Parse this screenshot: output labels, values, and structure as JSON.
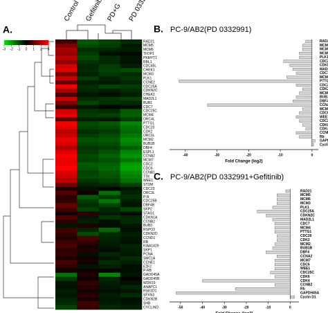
{
  "chart_data": [
    {
      "type": "heatmap",
      "label": "A.",
      "columns": [
        "Control",
        "Gefitinib",
        "PD+G",
        "PD  0332991"
      ],
      "rows": [
        "RAD21",
        "MCM5",
        "MCM6",
        "TFDP1",
        "PKMYT1",
        "RBL1",
        "CDC45L",
        "CHEK1",
        "MCM3",
        "PLK1",
        "CCNE2",
        "CDC25A",
        "CDKN2C",
        "CHEK2",
        "MAD2L1",
        "BUB1",
        "CDC7",
        "CDC25C",
        "MCM4",
        "ORC4L",
        "PTTG1",
        "CDC20",
        "CDK2",
        "ORC1L",
        "MCM2",
        "BUB1B",
        "DBF4",
        "ESPL1",
        "CCNA2",
        "MCM7",
        "CDC2",
        "CDC6",
        "CCNB1",
        "TTK",
        "WEE1",
        "STDM",
        "CDC23",
        "ORC3L",
        "P-R",
        "CDC25B",
        "DBF4B",
        "SKP2",
        "STAG1",
        "CDKN1A",
        "CCNB2",
        "BUB3",
        "RSPO3",
        "CDKN2D",
        "CCND1",
        "RB",
        "KIAA1429",
        "SKP1",
        "PCNA",
        "SMC1A",
        "CCNE1",
        "E2F2",
        "P-RB",
        "GADD45A",
        "GADD45B",
        "WDR19",
        "ANAPC1",
        "RSE1D1",
        "SFXN3",
        "CDKN2B",
        "SHB",
        "CYCLIND"
      ],
      "values": [
        [
          0.8,
          -1.2,
          -0.9,
          -0.6
        ],
        [
          1.5,
          -1,
          -0.8,
          -0.3
        ],
        [
          2,
          -0.6,
          -0.5,
          -0.4
        ],
        [
          1.8,
          -0.8,
          -0.2,
          -0.1
        ],
        [
          2.2,
          -1,
          -0.6,
          -0.3
        ],
        [
          1.6,
          -0.7,
          -0.5,
          -0.2
        ],
        [
          2.5,
          -0.5,
          -0.8,
          -0.4
        ],
        [
          2.6,
          -0.6,
          -0.9,
          -1
        ],
        [
          1.4,
          -0.4,
          -0.7,
          -0.6
        ],
        [
          2.4,
          -0.8,
          -0.5,
          -0.7
        ],
        [
          1.2,
          -0.4,
          -0.3,
          -0.5
        ],
        [
          2.8,
          -0.6,
          -0.9,
          -0.8
        ],
        [
          2,
          -0.5,
          -0.4,
          -0.6
        ],
        [
          0.8,
          -0.3,
          -0.2,
          -0.4
        ],
        [
          2.3,
          -0.6,
          -0.7,
          -0.9
        ],
        [
          1.5,
          -0.9,
          -0.6,
          -0.5
        ],
        [
          0.6,
          -0.3,
          -0.1,
          -0.2
        ],
        [
          2.5,
          -0.7,
          -0.6,
          -1.2
        ],
        [
          2.7,
          -0.8,
          -0.9,
          -1.3
        ],
        [
          1.1,
          -0.4,
          -0.3,
          -0.8
        ],
        [
          2.9,
          -1,
          -1.2,
          -1.8
        ],
        [
          2.6,
          -0.9,
          -1,
          -1.5
        ],
        [
          2.2,
          -0.6,
          -0.8,
          -1.4
        ],
        [
          2.4,
          -0.8,
          -1,
          -1.6
        ],
        [
          2.8,
          -1.1,
          -1.2,
          -1.9
        ],
        [
          2.5,
          -0.9,
          -1,
          -1.7
        ],
        [
          2.1,
          -0.7,
          -0.8,
          -1.2
        ],
        [
          2.6,
          -0.8,
          -1.1,
          -1.8
        ],
        [
          2.9,
          -1,
          -1.3,
          -2
        ],
        [
          2.7,
          -0.9,
          -1.1,
          -1.6
        ],
        [
          2.8,
          -1.2,
          -1.3,
          -2.1
        ],
        [
          3,
          -1.1,
          -1.4,
          -2.2
        ],
        [
          2.6,
          -0.9,
          -1.2,
          -1.9
        ],
        [
          2.4,
          -1,
          -1.1,
          -1.7
        ],
        [
          2.2,
          -0.7,
          -0.9,
          -1.5
        ],
        [
          1.4,
          -0.5,
          -0.6,
          -0.9
        ],
        [
          0.4,
          -0.2,
          -0.1,
          -0.3
        ],
        [
          1,
          0.2,
          -1.5,
          -0.5
        ],
        [
          0.5,
          -1.2,
          -0.8,
          -0.6
        ],
        [
          0.6,
          -0.8,
          -1.6,
          -0.4
        ],
        [
          1.2,
          -0.6,
          -0.9,
          -0.3
        ],
        [
          0.8,
          -0.9,
          -0.5,
          -1
        ],
        [
          0.3,
          0.5,
          -0.4,
          -0.2
        ],
        [
          0.9,
          -0.3,
          -0.7,
          -0.5
        ],
        [
          0.5,
          -0.4,
          -0.2,
          -0.6
        ],
        [
          -0.3,
          0.4,
          -0.2,
          -0.3
        ],
        [
          0.8,
          -0.5,
          -1.4,
          -0.2
        ],
        [
          0.6,
          -1,
          -0.6,
          -0.4
        ],
        [
          0.4,
          0.9,
          -0.5,
          -0.3
        ],
        [
          0.7,
          0.6,
          -0.4,
          -0.2
        ],
        [
          0.9,
          0.3,
          -0.3,
          -0.5
        ],
        [
          0.5,
          0.4,
          -0.2,
          -0.4
        ],
        [
          0.6,
          -0.2,
          -0.5,
          -0.3
        ],
        [
          0.4,
          0.2,
          -0.3,
          -0.6
        ],
        [
          0.8,
          0.3,
          -0.6,
          -0.4
        ],
        [
          0.5,
          -0.3,
          -0.4,
          -0.2
        ],
        [
          0.3,
          0.2,
          -0.1,
          -0.2
        ],
        [
          -1.5,
          0.4,
          -1.8,
          -0.3
        ],
        [
          -0.8,
          0.2,
          -0.5,
          0.1
        ],
        [
          -0.3,
          0.6,
          -0.4,
          -0.2
        ],
        [
          -0.2,
          0.4,
          -0.3,
          -0.5
        ],
        [
          -0.4,
          0.3,
          -0.2,
          -0.3
        ],
        [
          -0.3,
          0.5,
          -0.4,
          -0.6
        ],
        [
          -0.5,
          0.3,
          -0.3,
          -0.2
        ],
        [
          -0.6,
          0.8,
          -0.4,
          -0.3
        ],
        [
          -0.9,
          0.6,
          -0.5,
          -0.4
        ]
      ],
      "colormap": [
        "#00e000",
        "#000000",
        "#ff0000"
      ],
      "clim": [
        -3,
        3
      ],
      "cticks": [
        -3,
        -2,
        -1,
        0,
        1,
        2,
        3
      ]
    },
    {
      "type": "bar",
      "label": "B.",
      "title": "PC-9/AB2(PD  0332991)",
      "xlabel": "Fold Change (log2)",
      "categories": [
        "RAD21",
        "MCM5",
        "MCM6",
        "MCM3",
        "PLK1",
        "CDC25A",
        "CDKN2C",
        "MAD2L1",
        "CDC7",
        "MCM4",
        "PTTG1",
        "CDC20",
        "CDK2",
        "MCM2",
        "BUB1B",
        "DBF4",
        "CCNA2",
        "MCM7",
        "CDC6",
        "WEE1",
        "CDC25B",
        "CDK6",
        "CDK4",
        "CCNB2",
        "Rb",
        "GAPDH45A",
        "Cyclin D1"
      ],
      "values": [
        -2,
        -3,
        -3,
        -4,
        -4,
        -9,
        -7,
        -6,
        -5,
        -8,
        -42,
        -5,
        -3,
        -4,
        -5,
        -6,
        -33,
        -3,
        -4,
        -5,
        -4,
        -3,
        -2,
        -5,
        -4,
        1,
        0.5
      ],
      "color": "#d4d4d4",
      "xlim": [
        -45,
        2
      ],
      "xticks": [
        -40,
        -30,
        -20,
        -10,
        0
      ]
    },
    {
      "type": "bar",
      "label": "C.",
      "title": "PC-9/AB2(PD  0332991+Gefitinib)",
      "xlabel": "Fold Change (log2)",
      "categories": [
        "RAD21",
        "MCM5",
        "MCM6",
        "MCM3",
        "PLK1",
        "CDC25A",
        "CDKN2C",
        "MAD2L1",
        "CDC7",
        "MCM4",
        "PTTG1",
        "CDC20",
        "CDK2",
        "MCM2",
        "BUB1B",
        "DBF4",
        "CCNA2",
        "MCM7",
        "CDC6",
        "WEE1",
        "CDC25C",
        "CDK6",
        "CDK4",
        "CCNB2",
        "Rb",
        "GAPDH45A",
        "Cyclin D1"
      ],
      "values": [
        -2,
        -6,
        -6,
        -6,
        -8,
        -15,
        -11,
        -8,
        -7,
        -7,
        -7,
        -6,
        -6,
        -7,
        -8,
        -11,
        -6,
        -7,
        -7,
        -7,
        -9,
        -7,
        -40,
        -7,
        -25,
        -52,
        2
      ],
      "color": "#d4d4d4",
      "xlim": [
        -55,
        4
      ],
      "xticks": [
        -50,
        -40,
        -30,
        -20,
        -10,
        0
      ]
    }
  ]
}
